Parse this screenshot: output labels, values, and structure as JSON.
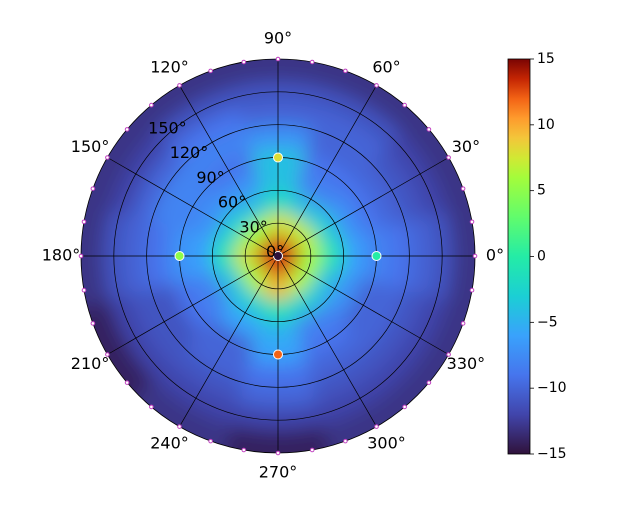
{
  "chart_data": {
    "type": "polar-heatmap",
    "theta": [
      0,
      30,
      60,
      90,
      120,
      150,
      180,
      210,
      240,
      270,
      300,
      330
    ],
    "r": [
      10,
      30,
      50,
      70,
      90,
      110,
      130,
      150,
      170
    ],
    "z": [
      [
        13,
        13,
        13,
        13,
        13,
        13,
        13,
        13,
        13,
        13,
        13,
        13
      ],
      [
        6,
        7,
        7,
        8,
        6,
        6,
        8,
        6,
        7,
        10,
        7,
        6
      ],
      [
        -1,
        -3,
        -4,
        -2,
        -4,
        -3,
        -1,
        -4,
        -3,
        -1,
        -3,
        -4
      ],
      [
        -6,
        -7,
        -8,
        -4,
        -7,
        -7,
        -6,
        -8,
        -6,
        -5,
        -8,
        -7
      ],
      [
        -8,
        -9,
        -9,
        -4,
        -9,
        -8,
        -7,
        -9,
        -10,
        -6,
        -9,
        -10
      ],
      [
        -9,
        -10,
        -10,
        -7,
        -8,
        -8,
        -9,
        -11,
        -10,
        -9,
        -10,
        -10
      ],
      [
        -10,
        -11,
        -10,
        -10,
        -9,
        -10,
        -10,
        -11,
        -11,
        -10,
        -11,
        -11
      ],
      [
        -11,
        -12,
        -11,
        -11,
        -11,
        -12,
        -11,
        -12,
        -12,
        -12,
        -12,
        -12
      ],
      [
        -13,
        -13,
        -13,
        -13,
        -13,
        -13,
        -13,
        -14,
        -13,
        -14,
        -13,
        -13
      ]
    ],
    "points": {
      "r": [
        0,
        90,
        90,
        90,
        90
      ],
      "theta": [
        0,
        0,
        90,
        180,
        270
      ],
      "values": [
        -15,
        0,
        8,
        5,
        12
      ]
    },
    "rlim": [
      0,
      180
    ],
    "rticks": [
      {
        "value": 0,
        "label": "0°"
      },
      {
        "value": 30,
        "label": "30°"
      },
      {
        "value": 60,
        "label": "60°"
      },
      {
        "value": 90,
        "label": "90°"
      },
      {
        "value": 120,
        "label": "120°"
      },
      {
        "value": 150,
        "label": "150°"
      }
    ],
    "thetaticks": [
      {
        "value": 0,
        "label": "0°"
      },
      {
        "value": 30,
        "label": "30°"
      },
      {
        "value": 60,
        "label": "60°"
      },
      {
        "value": 90,
        "label": "90°"
      },
      {
        "value": 120,
        "label": "120°"
      },
      {
        "value": 150,
        "label": "150°"
      },
      {
        "value": 180,
        "label": "180°"
      },
      {
        "value": 210,
        "label": "210°"
      },
      {
        "value": 240,
        "label": "240°"
      },
      {
        "value": 270,
        "label": "270°"
      },
      {
        "value": 300,
        "label": "300°"
      },
      {
        "value": 330,
        "label": "330°"
      }
    ],
    "clim": [
      -15,
      15
    ],
    "cticks": [
      {
        "value": -15,
        "label": "−15"
      },
      {
        "value": -10,
        "label": "−10"
      },
      {
        "value": -5,
        "label": "−5"
      },
      0,
      5,
      10,
      15
    ],
    "colormap": "turbo"
  }
}
